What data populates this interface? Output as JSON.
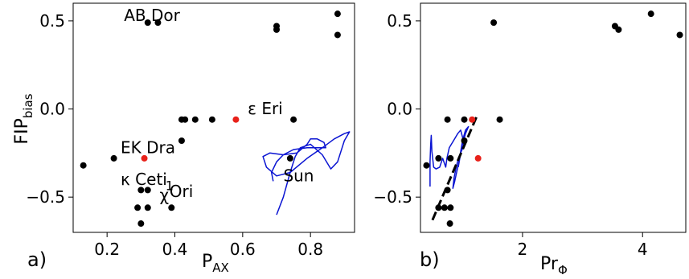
{
  "chart_data": [
    {
      "panel": "a)",
      "type": "scatter",
      "xlabel": {
        "main": "P",
        "sub": "AX"
      },
      "ylabel": {
        "main": "FIP",
        "sub": "bias"
      },
      "xlim": [
        0.1,
        0.93
      ],
      "ylim": [
        -0.7,
        0.6
      ],
      "xticks": [
        0.2,
        0.4,
        0.6,
        0.8
      ],
      "xtick_labels": [
        "0.2",
        "0.4",
        "0.6",
        "0.8"
      ],
      "yticks": [
        0.5,
        0.0,
        -0.5
      ],
      "ytick_labels": [
        "0.5",
        "0.0",
        "−0.5"
      ],
      "colors": {
        "stars": "#000000",
        "highlight": "#e8211a",
        "sun": "#0a14d2"
      },
      "series": [
        {
          "color": "#000000",
          "points": [
            [
              0.32,
              0.49
            ],
            [
              0.35,
              0.49
            ],
            [
              0.7,
              0.47
            ],
            [
              0.7,
              0.45
            ],
            [
              0.88,
              0.54
            ],
            [
              0.88,
              0.42
            ],
            [
              0.42,
              -0.06
            ],
            [
              0.43,
              -0.06
            ],
            [
              0.46,
              -0.06
            ],
            [
              0.51,
              -0.06
            ],
            [
              0.75,
              -0.06
            ],
            [
              0.42,
              -0.18
            ],
            [
              0.74,
              -0.28
            ],
            [
              0.13,
              -0.32
            ],
            [
              0.22,
              -0.28
            ],
            [
              0.3,
              -0.46
            ],
            [
              0.32,
              -0.46
            ],
            [
              0.29,
              -0.56
            ],
            [
              0.32,
              -0.56
            ],
            [
              0.39,
              -0.56
            ],
            [
              0.3,
              -0.65
            ]
          ]
        },
        {
          "color": "#e8211a",
          "points": [
            [
              0.58,
              -0.06
            ],
            [
              0.31,
              -0.28
            ]
          ]
        }
      ],
      "sun_curve": {
        "color": "#0a14d2",
        "points": [
          [
            0.7,
            -0.6
          ],
          [
            0.72,
            -0.5
          ],
          [
            0.74,
            -0.36
          ],
          [
            0.755,
            -0.27
          ],
          [
            0.77,
            -0.22
          ],
          [
            0.8,
            -0.2
          ],
          [
            0.835,
            -0.26
          ],
          [
            0.86,
            -0.34
          ],
          [
            0.88,
            -0.3
          ],
          [
            0.9,
            -0.18
          ],
          [
            0.915,
            -0.13
          ],
          [
            0.9,
            -0.14
          ],
          [
            0.87,
            -0.17
          ],
          [
            0.835,
            -0.22
          ],
          [
            0.79,
            -0.28
          ],
          [
            0.74,
            -0.36
          ],
          [
            0.7,
            -0.38
          ],
          [
            0.67,
            -0.33
          ],
          [
            0.66,
            -0.27
          ],
          [
            0.68,
            -0.25
          ],
          [
            0.72,
            -0.26
          ],
          [
            0.76,
            -0.25
          ],
          [
            0.79,
            -0.2
          ],
          [
            0.8,
            -0.17
          ],
          [
            0.82,
            -0.17
          ],
          [
            0.84,
            -0.19
          ],
          [
            0.845,
            -0.22
          ],
          [
            0.83,
            -0.22
          ],
          [
            0.79,
            -0.22
          ],
          [
            0.75,
            -0.23
          ],
          [
            0.72,
            -0.26
          ],
          [
            0.7,
            -0.3
          ],
          [
            0.685,
            -0.36
          ],
          [
            0.69,
            -0.41
          ]
        ]
      },
      "annotations": [
        {
          "text": "AB Dor",
          "x": 0.25,
          "y": 0.5
        },
        {
          "text": "ε Eri",
          "x": 0.615,
          "y": -0.03
        },
        {
          "text": "EK Dra",
          "x": 0.24,
          "y": -0.25
        },
        {
          "text": "κ Ceti",
          "x": 0.24,
          "y": -0.43
        },
        {
          "text": "χ",
          "x": 0.355,
          "y": -0.52
        },
        {
          "text": "1",
          "x": 0.372,
          "y": -0.46
        },
        {
          "text": "Ori",
          "x": 0.384,
          "y": -0.5
        },
        {
          "text": "Sun",
          "x": 0.72,
          "y": -0.41
        }
      ]
    },
    {
      "panel": "b)",
      "type": "scatter",
      "xlabel": {
        "main": "Pr",
        "sub": "Φ"
      },
      "xlim": [
        0.3,
        4.72
      ],
      "ylim": [
        -0.7,
        0.6
      ],
      "xticks": [
        2,
        4
      ],
      "xtick_labels": [
        "2",
        "4"
      ],
      "yticks": [
        0.5,
        0.0,
        -0.5
      ],
      "ytick_labels": [
        "0.5",
        "0.0",
        "−0.5"
      ],
      "series": [
        {
          "color": "#000000",
          "points": [
            [
              1.52,
              0.49
            ],
            [
              3.54,
              0.47
            ],
            [
              3.6,
              0.45
            ],
            [
              4.14,
              0.54
            ],
            [
              4.62,
              0.42
            ],
            [
              0.75,
              -0.06
            ],
            [
              1.03,
              -0.06
            ],
            [
              1.62,
              -0.06
            ],
            [
              1.03,
              -0.18
            ],
            [
              0.4,
              -0.32
            ],
            [
              0.6,
              -0.28
            ],
            [
              0.8,
              -0.28
            ],
            [
              0.75,
              -0.46
            ],
            [
              0.7,
              -0.56
            ],
            [
              0.8,
              -0.56
            ],
            [
              0.6,
              -0.56
            ],
            [
              0.79,
              -0.65
            ]
          ]
        },
        {
          "color": "#e8211a",
          "points": [
            [
              1.16,
              -0.06
            ],
            [
              1.26,
              -0.28
            ]
          ]
        }
      ],
      "fit_line": {
        "color": "#000000",
        "style": "dashed",
        "points": [
          [
            0.5,
            -0.63
          ],
          [
            1.24,
            -0.04
          ]
        ]
      },
      "sun_curve": {
        "color": "#0a14d2",
        "points": [
          [
            0.46,
            -0.44
          ],
          [
            0.46,
            -0.3
          ],
          [
            0.47,
            -0.2
          ],
          [
            0.48,
            -0.15
          ],
          [
            0.49,
            -0.24
          ],
          [
            0.52,
            -0.33
          ],
          [
            0.56,
            -0.34
          ],
          [
            0.62,
            -0.33
          ],
          [
            0.67,
            -0.28
          ],
          [
            0.72,
            -0.33
          ],
          [
            0.74,
            -0.28
          ],
          [
            0.78,
            -0.22
          ],
          [
            0.85,
            -0.18
          ],
          [
            0.92,
            -0.14
          ],
          [
            0.97,
            -0.12
          ],
          [
            1.0,
            -0.16
          ],
          [
            1.02,
            -0.21
          ],
          [
            0.98,
            -0.24
          ],
          [
            0.93,
            -0.28
          ],
          [
            0.89,
            -0.34
          ],
          [
            0.86,
            -0.39
          ],
          [
            0.84,
            -0.45
          ],
          [
            0.87,
            -0.41
          ],
          [
            0.94,
            -0.3
          ],
          [
            1.0,
            -0.18
          ],
          [
            1.05,
            -0.12
          ],
          [
            1.1,
            -0.1
          ],
          [
            1.05,
            -0.14
          ],
          [
            1.0,
            -0.2
          ],
          [
            0.96,
            -0.27
          ],
          [
            0.93,
            -0.33
          ]
        ]
      }
    }
  ]
}
